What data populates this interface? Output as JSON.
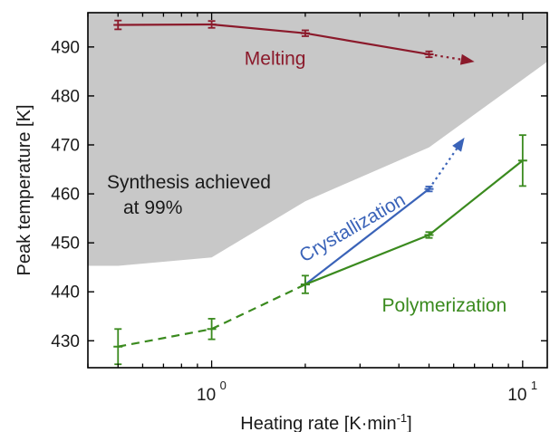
{
  "chart_data": {
    "type": "line",
    "xscale": "log",
    "xlim": [
      0.4,
      12
    ],
    "ylim": [
      424.5,
      497
    ],
    "xlabel": "Heating rate [K·min",
    "xlabel_sup": "-1",
    "xlabel_end": "]",
    "ylabel": "Peak temperature [K]",
    "x_ticks": [
      {
        "value": 1,
        "base": "10",
        "exp": "0"
      },
      {
        "value": 10,
        "base": "10",
        "exp": "1"
      }
    ],
    "y_ticks": [
      430,
      440,
      450,
      460,
      470,
      480,
      490
    ],
    "grid": false,
    "region": {
      "label_line1": "Synthesis achieved",
      "label_line2": "at 99%",
      "color": "#c8c8c8",
      "boundary": [
        {
          "x": 0.4,
          "y": 445.3
        },
        {
          "x": 0.5,
          "y": 445.3
        },
        {
          "x": 1.0,
          "y": 447.0
        },
        {
          "x": 2.0,
          "y": 458.5
        },
        {
          "x": 5.0,
          "y": 469.5
        },
        {
          "x": 12.0,
          "y": 487.0
        }
      ]
    },
    "series": [
      {
        "name": "Melting",
        "color": "#8b1a2b",
        "points": [
          {
            "x": 0.5,
            "y": 494.5,
            "err": 0.9
          },
          {
            "x": 1.0,
            "y": 494.6,
            "err": 0.7
          },
          {
            "x": 2.0,
            "y": 492.8,
            "err": 0.6
          },
          {
            "x": 5.0,
            "y": 488.5,
            "err": 0.6
          }
        ],
        "dashed_until_index": 0,
        "extension": {
          "x": 7.0,
          "y": 487.0
        }
      },
      {
        "name": "Crystallization",
        "color": "#3a63b8",
        "points": [
          {
            "x": 2.0,
            "y": 441.5,
            "err": 0
          },
          {
            "x": 5.0,
            "y": 461.0,
            "err": 0.5
          }
        ],
        "dashed_until_index": 0,
        "extension": {
          "x": 6.5,
          "y": 471.5
        }
      },
      {
        "name": "Polymerization",
        "color": "#3a8a1e",
        "points": [
          {
            "x": 0.5,
            "y": 428.8,
            "err": 3.6
          },
          {
            "x": 1.0,
            "y": 432.4,
            "err": 2.1
          },
          {
            "x": 2.0,
            "y": 441.5,
            "err": 1.8
          },
          {
            "x": 5.0,
            "y": 451.6,
            "err": 0.6
          },
          {
            "x": 10.0,
            "y": 466.8,
            "err": 5.2
          }
        ],
        "dashed_until_index": 2,
        "extension": null
      }
    ],
    "annotations": [
      {
        "text": "Melting",
        "color": "#8b1a2b",
        "x": 1.6,
        "y": 486.4,
        "rotate": 0
      },
      {
        "text": "Crystallization",
        "color": "#3a63b8",
        "x": 2.9,
        "y": 452.0,
        "rotate": -30
      },
      {
        "text": "Polymerization",
        "color": "#3a8a1e",
        "x": 5.6,
        "y": 436.0,
        "rotate": 0
      }
    ]
  }
}
